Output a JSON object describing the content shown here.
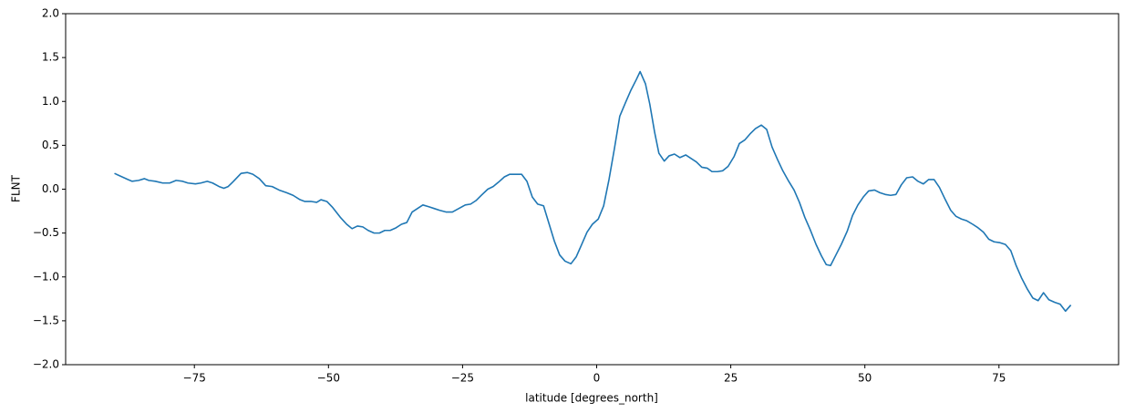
{
  "chart_data": {
    "type": "line",
    "x_label": "latitude [degrees_north]",
    "y_label": "FLNT",
    "x": [
      -89.9,
      -87.4,
      -86.6,
      -85.4,
      -84.3,
      -83.5,
      -82.3,
      -80.9,
      -79.6,
      -78.4,
      -77.2,
      -76.2,
      -74.8,
      -73.8,
      -72.6,
      -71.6,
      -70.4,
      -69.5,
      -68.7,
      -67.7,
      -66.3,
      -65.1,
      -64.1,
      -62.9,
      -61.7,
      -60.5,
      -59.2,
      -57.8,
      -56.6,
      -55.3,
      -54.4,
      -53.2,
      -52.2,
      -51.4,
      -50.3,
      -49.2,
      -47.8,
      -46.6,
      -45.6,
      -44.6,
      -43.6,
      -42.6,
      -41.5,
      -40.5,
      -39.5,
      -38.5,
      -37.4,
      -36.4,
      -35.4,
      -34.4,
      -33.4,
      -32.4,
      -31.3,
      -30.3,
      -29.3,
      -28.1,
      -26.9,
      -25.7,
      -24.5,
      -23.5,
      -22.5,
      -21.5,
      -20.3,
      -19.3,
      -18.3,
      -17.2,
      -16.2,
      -15.2,
      -14.0,
      -13.0,
      -12.0,
      -11.0,
      -9.9,
      -8.9,
      -7.9,
      -6.9,
      -5.9,
      -4.8,
      -3.8,
      -2.8,
      -1.8,
      -0.8,
      0.3,
      1.3,
      2.3,
      3.3,
      4.3,
      5.4,
      6.4,
      7.4,
      8.1,
      9.1,
      9.9,
      10.8,
      11.6,
      12.6,
      13.5,
      14.5,
      15.5,
      16.6,
      17.6,
      18.6,
      19.6,
      20.6,
      21.5,
      22.5,
      23.5,
      24.5,
      25.6,
      26.6,
      27.6,
      28.6,
      29.6,
      30.7,
      31.7,
      32.7,
      33.7,
      34.7,
      35.8,
      36.8,
      37.8,
      38.8,
      39.8,
      40.9,
      41.9,
      42.8,
      43.6,
      44.6,
      45.6,
      46.7,
      47.7,
      48.7,
      49.7,
      50.7,
      51.8,
      52.8,
      53.8,
      54.8,
      55.8,
      56.8,
      57.8,
      58.9,
      59.9,
      60.9,
      61.9,
      62.9,
      63.9,
      65.0,
      66.0,
      67.0,
      68.0,
      69.0,
      70.1,
      71.1,
      72.1,
      73.1,
      74.1,
      75.2,
      76.2,
      77.2,
      78.2,
      79.2,
      80.3,
      81.3,
      82.3,
      83.3,
      84.3,
      85.4,
      86.4,
      87.4,
      88.4
    ],
    "series": [
      {
        "color": "#1f77b4",
        "values": [
          0.18,
          0.11,
          0.09,
          0.1,
          0.12,
          0.1,
          0.09,
          0.07,
          0.07,
          0.1,
          0.09,
          0.07,
          0.06,
          0.07,
          0.09,
          0.07,
          0.03,
          0.01,
          0.03,
          0.09,
          0.18,
          0.19,
          0.17,
          0.12,
          0.04,
          0.03,
          -0.01,
          -0.04,
          -0.07,
          -0.12,
          -0.14,
          -0.14,
          -0.15,
          -0.12,
          -0.14,
          -0.21,
          -0.32,
          -0.4,
          -0.45,
          -0.42,
          -0.43,
          -0.47,
          -0.5,
          -0.5,
          -0.47,
          -0.47,
          -0.44,
          -0.4,
          -0.38,
          -0.26,
          -0.22,
          -0.18,
          -0.2,
          -0.22,
          -0.24,
          -0.26,
          -0.26,
          -0.22,
          -0.18,
          -0.17,
          -0.13,
          -0.07,
          0.0,
          0.03,
          0.08,
          0.14,
          0.17,
          0.17,
          0.17,
          0.09,
          -0.09,
          -0.17,
          -0.19,
          -0.39,
          -0.59,
          -0.75,
          -0.82,
          -0.85,
          -0.77,
          -0.63,
          -0.49,
          -0.4,
          -0.34,
          -0.19,
          0.11,
          0.46,
          0.83,
          0.99,
          1.13,
          1.25,
          1.34,
          1.2,
          0.97,
          0.65,
          0.41,
          0.32,
          0.38,
          0.4,
          0.36,
          0.39,
          0.35,
          0.31,
          0.25,
          0.24,
          0.2,
          0.2,
          0.21,
          0.26,
          0.37,
          0.52,
          0.56,
          0.63,
          0.69,
          0.73,
          0.68,
          0.48,
          0.34,
          0.21,
          0.09,
          -0.01,
          -0.15,
          -0.32,
          -0.46,
          -0.63,
          -0.76,
          -0.86,
          -0.87,
          -0.75,
          -0.63,
          -0.48,
          -0.3,
          -0.18,
          -0.09,
          -0.02,
          -0.01,
          -0.04,
          -0.06,
          -0.07,
          -0.06,
          0.05,
          0.13,
          0.14,
          0.09,
          0.06,
          0.11,
          0.11,
          0.02,
          -0.12,
          -0.24,
          -0.31,
          -0.34,
          -0.36,
          -0.4,
          -0.44,
          -0.49,
          -0.57,
          -0.6,
          -0.61,
          -0.63,
          -0.7,
          -0.87,
          -1.01,
          -1.14,
          -1.24,
          -1.27,
          -1.18,
          -1.26,
          -1.29,
          -1.31,
          -1.39,
          -1.32
        ]
      }
    ],
    "xlim": [
      -99,
      97.3
    ],
    "xticks": [
      {
        "value": -75,
        "label": "−75"
      },
      {
        "value": -50,
        "label": "−50"
      },
      {
        "value": -25,
        "label": "−25"
      },
      0,
      25,
      50,
      75
    ],
    "ylim": [
      -2,
      2
    ],
    "yticks": [
      {
        "value": -2,
        "label": "−2.0"
      },
      {
        "value": -1.5,
        "label": "−1.5"
      },
      {
        "value": -1,
        "label": "−1.0"
      },
      {
        "value": -0.5,
        "label": "−0.5"
      },
      {
        "value": 0,
        "label": "0.0"
      },
      {
        "value": 0.5,
        "label": "0.5"
      },
      {
        "value": 1,
        "label": "1.0"
      },
      {
        "value": 1.5,
        "label": "1.5"
      },
      {
        "value": 2,
        "label": "2.0"
      }
    ]
  }
}
